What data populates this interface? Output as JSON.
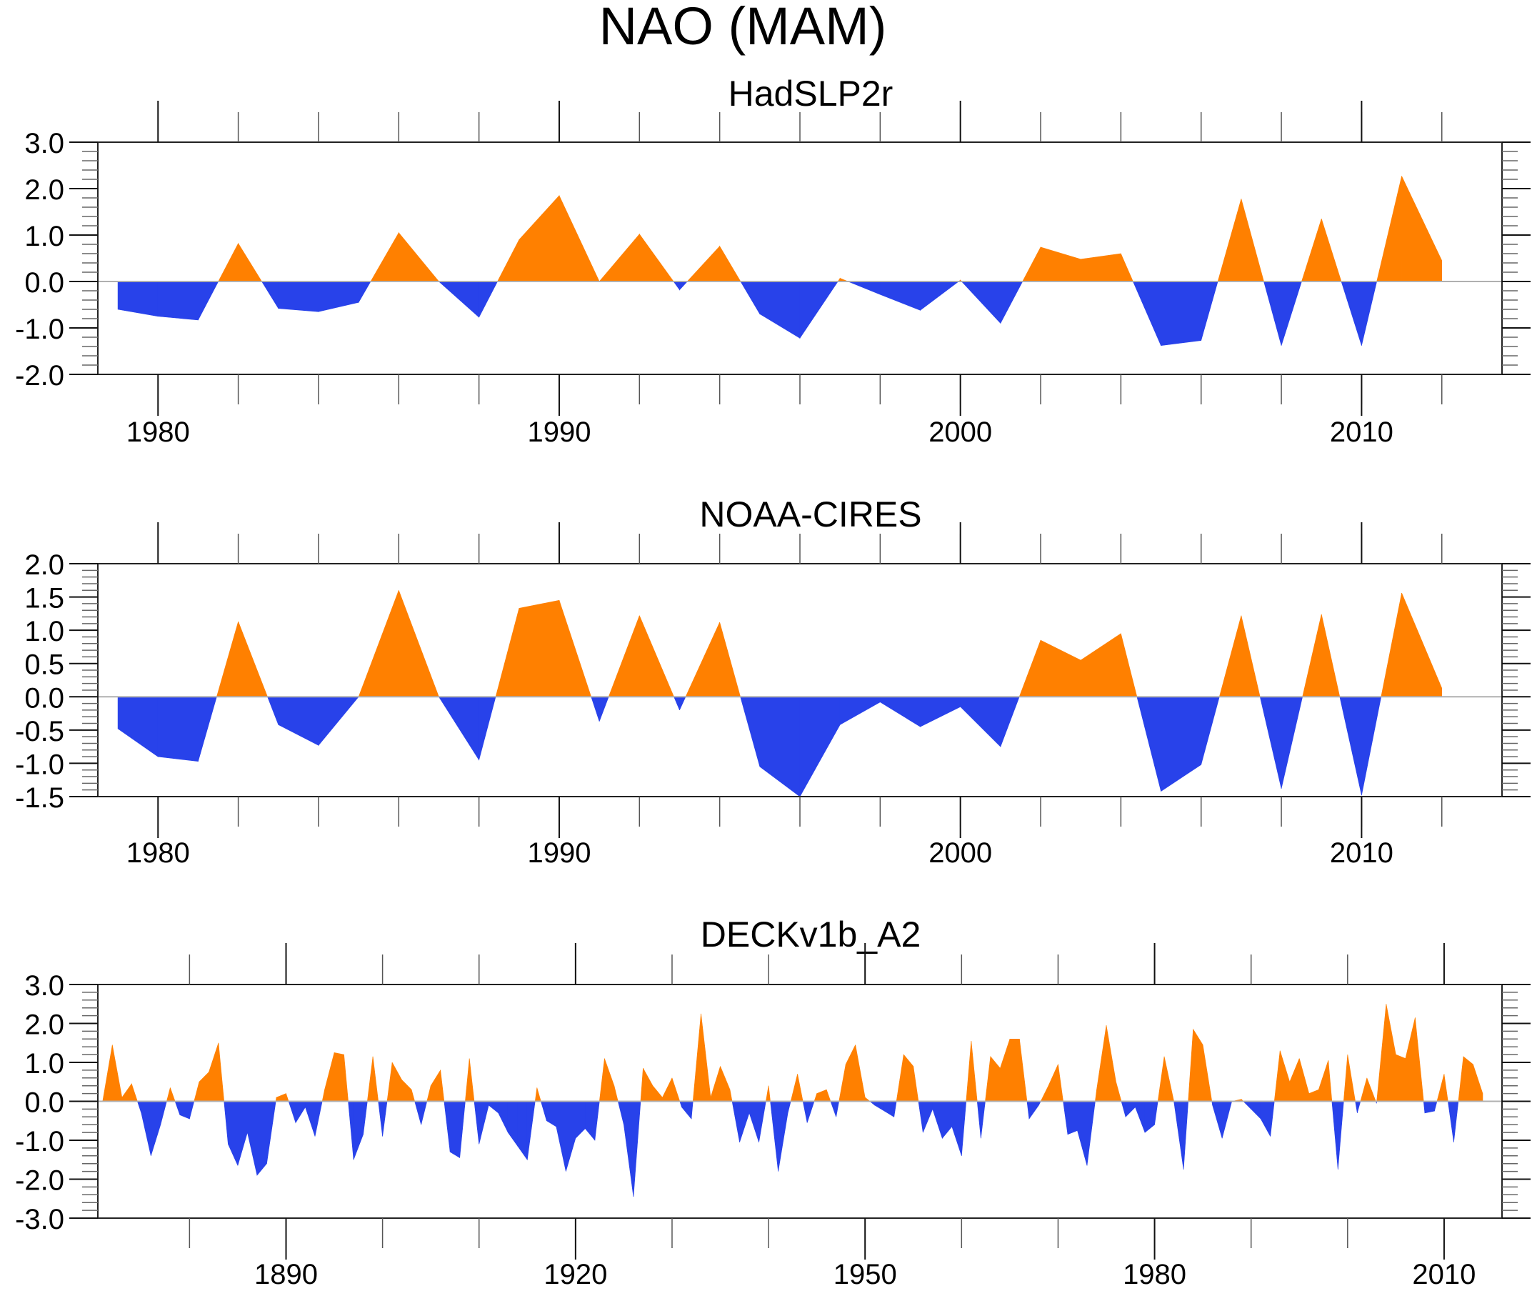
{
  "figure_title": "NAO (MAM)",
  "colors": {
    "positive": "#ff8000",
    "negative": "#2842ea",
    "zero_line": "#b0b0b0",
    "axis": "#000000"
  },
  "chart_data": [
    {
      "type": "area",
      "title": "HadSLP2r",
      "xlabel": "",
      "ylabel": "",
      "xlim": [
        1978.5,
        2013.5
      ],
      "ylim": [
        -2.0,
        3.0
      ],
      "xticks": [
        1980,
        1990,
        2000,
        2010
      ],
      "xtick_labels": [
        "1980",
        "1990",
        "2000",
        "2010"
      ],
      "yticks": [
        -2.0,
        -1.0,
        0.0,
        1.0,
        2.0,
        3.0
      ],
      "ytick_labels": [
        "-2.0",
        "-1.0",
        "0.0",
        "1.0",
        "2.0",
        "3.0"
      ],
      "minor_x_step": 2,
      "minor_y_step": 0.2,
      "grid": false,
      "x": [
        1979,
        1980,
        1981,
        1982,
        1983,
        1984,
        1985,
        1986,
        1987,
        1988,
        1989,
        1990,
        1991,
        1992,
        1993,
        1994,
        1995,
        1996,
        1997,
        1998,
        1999,
        2000,
        2001,
        2002,
        2003,
        2004,
        2005,
        2006,
        2007,
        2008,
        2009,
        2010,
        2011,
        2012
      ],
      "values": [
        -0.6,
        -0.75,
        -0.83,
        0.82,
        -0.58,
        -0.65,
        -0.45,
        1.05,
        0.0,
        -0.77,
        0.9,
        1.85,
        0.0,
        1.02,
        -0.18,
        0.76,
        -0.7,
        -1.22,
        0.07,
        -0.28,
        -0.62,
        0.03,
        -0.9,
        0.74,
        0.48,
        0.6,
        -1.38,
        -1.27,
        1.78,
        -1.38,
        1.35,
        -1.38,
        2.27,
        0.45
      ]
    },
    {
      "type": "area",
      "title": "NOAA-CIRES",
      "xlabel": "",
      "ylabel": "",
      "xlim": [
        1978.5,
        2013.5
      ],
      "ylim": [
        -1.5,
        2.0
      ],
      "xticks": [
        1980,
        1990,
        2000,
        2010
      ],
      "xtick_labels": [
        "1980",
        "1990",
        "2000",
        "2010"
      ],
      "yticks": [
        -1.5,
        -1.0,
        -0.5,
        0.0,
        0.5,
        1.0,
        1.5,
        2.0
      ],
      "ytick_labels": [
        "-1.5",
        "-1.0",
        "-0.5",
        "0.0",
        "0.5",
        "1.0",
        "1.5",
        "2.0"
      ],
      "minor_x_step": 2,
      "minor_y_step": 0.1,
      "grid": false,
      "x": [
        1979,
        1980,
        1981,
        1982,
        1983,
        1984,
        1985,
        1986,
        1987,
        1988,
        1989,
        1990,
        1991,
        1992,
        1993,
        1994,
        1995,
        1996,
        1997,
        1998,
        1999,
        2000,
        2001,
        2002,
        2003,
        2004,
        2005,
        2006,
        2007,
        2008,
        2009,
        2010,
        2011,
        2012
      ],
      "values": [
        -0.48,
        -0.9,
        -0.97,
        1.13,
        -0.42,
        -0.73,
        0.0,
        1.6,
        0.0,
        -0.95,
        1.33,
        1.45,
        -0.37,
        1.22,
        -0.2,
        1.12,
        -1.05,
        -1.5,
        -0.42,
        -0.08,
        -0.45,
        -0.15,
        -0.75,
        0.85,
        0.55,
        0.95,
        -1.42,
        -1.02,
        1.22,
        -1.38,
        1.24,
        -1.48,
        1.56,
        0.13
      ]
    },
    {
      "type": "area",
      "title": "DECKv1b_A2",
      "xlabel": "",
      "ylabel": "",
      "xlim": [
        1870.5,
        2016
      ],
      "ylim": [
        -3.0,
        3.0
      ],
      "xticks": [
        1890,
        1920,
        1950,
        1980,
        2010
      ],
      "xtick_labels": [
        "1890",
        "1920",
        "1950",
        "1980",
        "2010"
      ],
      "yticks": [
        -3.0,
        -2.0,
        -1.0,
        0.0,
        1.0,
        2.0,
        3.0
      ],
      "ytick_labels": [
        "-3.0",
        "-2.0",
        "-1.0",
        "0.0",
        "1.0",
        "2.0",
        "3.0"
      ],
      "minor_x_step": 10,
      "minor_y_step": 0.2,
      "grid": false,
      "x_start": 1871,
      "values": [
        0.0,
        1.45,
        0.1,
        0.45,
        -0.3,
        -1.4,
        -0.6,
        0.35,
        -0.35,
        -0.45,
        0.5,
        0.75,
        1.5,
        -1.1,
        -1.65,
        -0.8,
        -1.9,
        -1.6,
        0.1,
        0.2,
        -0.55,
        -0.15,
        -0.9,
        0.3,
        1.25,
        1.2,
        -1.5,
        -0.85,
        1.15,
        -0.9,
        1.0,
        0.55,
        0.3,
        -0.6,
        0.4,
        0.8,
        -1.3,
        -1.45,
        1.1,
        -1.1,
        -0.1,
        -0.3,
        -0.8,
        -1.15,
        -1.5,
        0.35,
        -0.5,
        -0.65,
        -1.8,
        -0.95,
        -0.7,
        -1.0,
        1.1,
        0.4,
        -0.6,
        -2.45,
        0.85,
        0.4,
        0.1,
        0.6,
        -0.15,
        -0.45,
        2.25,
        0.1,
        0.9,
        0.3,
        -1.05,
        -0.3,
        -1.05,
        0.4,
        -1.8,
        -0.3,
        0.7,
        -0.55,
        0.2,
        0.3,
        -0.4,
        0.95,
        1.45,
        0.1,
        -0.1,
        -0.25,
        -0.4,
        1.2,
        0.9,
        -0.8,
        -0.2,
        -0.95,
        -0.65,
        -1.4,
        1.55,
        -0.95,
        1.15,
        0.85,
        1.6,
        1.6,
        -0.45,
        -0.1,
        0.4,
        0.95,
        -0.85,
        -0.75,
        -1.65,
        0.3,
        1.95,
        0.5,
        -0.4,
        -0.15,
        -0.8,
        -0.6,
        1.15,
        0.0,
        -1.75,
        1.85,
        1.45,
        -0.1,
        -0.95,
        0.0,
        0.05,
        -0.2,
        -0.45,
        -0.9,
        1.3,
        0.5,
        1.1,
        0.2,
        0.3,
        1.05,
        -1.75,
        1.2,
        -0.3,
        0.6,
        -0.05,
        2.5,
        1.2,
        1.1,
        2.15,
        -0.3,
        -0.25,
        0.7,
        -1.05,
        1.15,
        0.95,
        0.2
      ]
    }
  ]
}
